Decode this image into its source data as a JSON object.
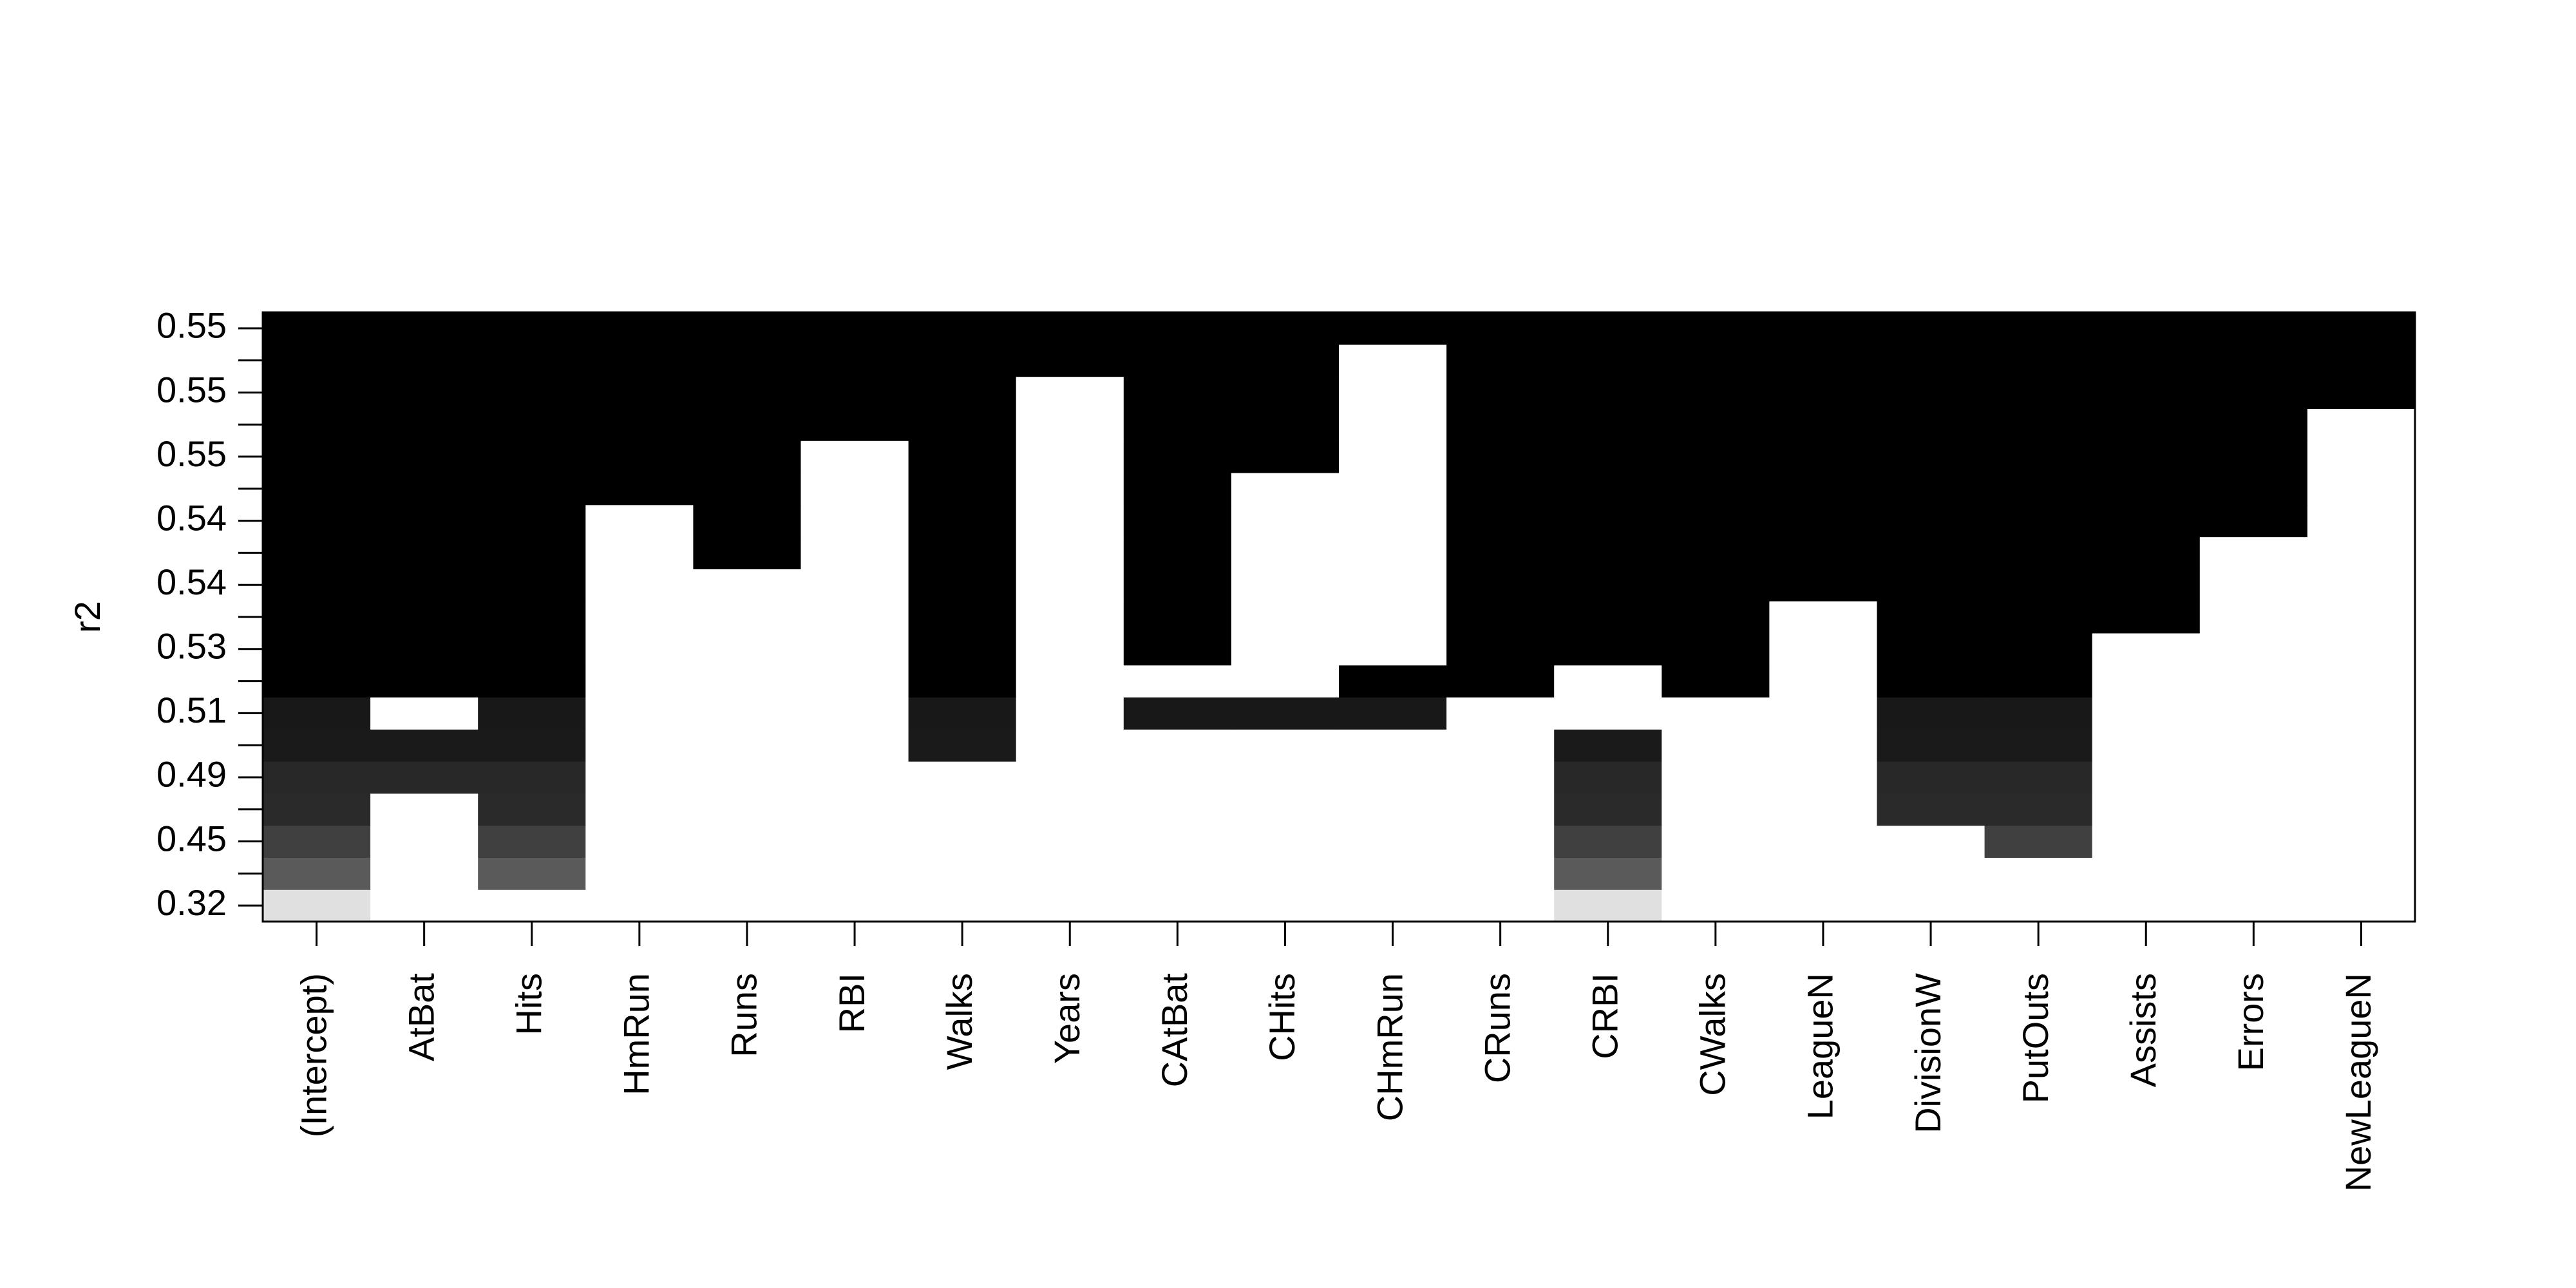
{
  "chart_data": {
    "type": "heatmap",
    "ylabel": "r2",
    "columns": [
      "(Intercept)",
      "AtBat",
      "Hits",
      "HmRun",
      "Runs",
      "RBI",
      "Walks",
      "Years",
      "CAtBat",
      "CHits",
      "CHmRun",
      "CRuns",
      "CRBI",
      "CWalks",
      "LeagueN",
      "DivisionW",
      "PutOuts",
      "Assists",
      "Errors",
      "NewLeagueN"
    ],
    "rows": [
      {
        "label": 0.32,
        "color": "#e0e0e0",
        "included": [
          1,
          0,
          0,
          0,
          0,
          0,
          0,
          0,
          0,
          0,
          0,
          0,
          1,
          0,
          0,
          0,
          0,
          0,
          0,
          0
        ]
      },
      {
        "label": null,
        "color": "#5a5a5a",
        "included": [
          1,
          0,
          1,
          0,
          0,
          0,
          0,
          0,
          0,
          0,
          0,
          0,
          1,
          0,
          0,
          0,
          0,
          0,
          0,
          0
        ]
      },
      {
        "label": 0.45,
        "color": "#404040",
        "included": [
          1,
          0,
          1,
          0,
          0,
          0,
          0,
          0,
          0,
          0,
          0,
          0,
          1,
          0,
          0,
          0,
          1,
          0,
          0,
          0
        ]
      },
      {
        "label": null,
        "color": "#2a2a2a",
        "included": [
          1,
          0,
          1,
          0,
          0,
          0,
          0,
          0,
          0,
          0,
          0,
          0,
          1,
          0,
          0,
          1,
          1,
          0,
          0,
          0
        ]
      },
      {
        "label": 0.49,
        "color": "#282828",
        "included": [
          1,
          1,
          1,
          0,
          0,
          0,
          0,
          0,
          0,
          0,
          0,
          0,
          1,
          0,
          0,
          1,
          1,
          0,
          0,
          0
        ]
      },
      {
        "label": null,
        "color": "#1a1a1a",
        "included": [
          1,
          1,
          1,
          0,
          0,
          0,
          1,
          0,
          0,
          0,
          0,
          0,
          1,
          0,
          0,
          1,
          1,
          0,
          0,
          0
        ]
      },
      {
        "label": 0.51,
        "color": "#181818",
        "included": [
          1,
          0,
          1,
          0,
          0,
          0,
          1,
          0,
          1,
          1,
          1,
          0,
          0,
          0,
          0,
          1,
          1,
          0,
          0,
          0
        ]
      },
      {
        "label": null,
        "color": "#000000",
        "included": [
          1,
          1,
          1,
          0,
          0,
          0,
          1,
          0,
          0,
          0,
          1,
          1,
          0,
          1,
          0,
          1,
          1,
          0,
          0,
          0
        ]
      },
      {
        "label": 0.53,
        "color": "#000000",
        "included": [
          1,
          1,
          1,
          0,
          0,
          0,
          1,
          0,
          1,
          0,
          0,
          1,
          1,
          1,
          0,
          1,
          1,
          0,
          0,
          0
        ]
      },
      {
        "label": null,
        "color": "#000000",
        "included": [
          1,
          1,
          1,
          0,
          0,
          0,
          1,
          0,
          1,
          0,
          0,
          1,
          1,
          1,
          0,
          1,
          1,
          1,
          0,
          0
        ]
      },
      {
        "label": 0.54,
        "color": "#000000",
        "included": [
          1,
          1,
          1,
          0,
          0,
          0,
          1,
          0,
          1,
          0,
          0,
          1,
          1,
          1,
          1,
          1,
          1,
          1,
          0,
          0
        ]
      },
      {
        "label": null,
        "color": "#000000",
        "included": [
          1,
          1,
          1,
          0,
          1,
          0,
          1,
          0,
          1,
          0,
          0,
          1,
          1,
          1,
          1,
          1,
          1,
          1,
          0,
          0
        ]
      },
      {
        "label": 0.54,
        "color": "#000000",
        "included": [
          1,
          1,
          1,
          0,
          1,
          0,
          1,
          0,
          1,
          0,
          0,
          1,
          1,
          1,
          1,
          1,
          1,
          1,
          1,
          0
        ]
      },
      {
        "label": null,
        "color": "#000000",
        "included": [
          1,
          1,
          1,
          1,
          1,
          0,
          1,
          0,
          1,
          0,
          0,
          1,
          1,
          1,
          1,
          1,
          1,
          1,
          1,
          0
        ]
      },
      {
        "label": 0.55,
        "color": "#000000",
        "included": [
          1,
          1,
          1,
          1,
          1,
          0,
          1,
          0,
          1,
          1,
          0,
          1,
          1,
          1,
          1,
          1,
          1,
          1,
          1,
          0
        ]
      },
      {
        "label": null,
        "color": "#000000",
        "included": [
          1,
          1,
          1,
          1,
          1,
          1,
          1,
          0,
          1,
          1,
          0,
          1,
          1,
          1,
          1,
          1,
          1,
          1,
          1,
          0
        ]
      },
      {
        "label": 0.55,
        "color": "#000000",
        "included": [
          1,
          1,
          1,
          1,
          1,
          1,
          1,
          0,
          1,
          1,
          0,
          1,
          1,
          1,
          1,
          1,
          1,
          1,
          1,
          1
        ]
      },
      {
        "label": null,
        "color": "#000000",
        "included": [
          1,
          1,
          1,
          1,
          1,
          1,
          1,
          1,
          1,
          1,
          0,
          1,
          1,
          1,
          1,
          1,
          1,
          1,
          1,
          1
        ]
      },
      {
        "label": 0.55,
        "color": "#000000",
        "included": [
          1,
          1,
          1,
          1,
          1,
          1,
          1,
          1,
          1,
          1,
          1,
          1,
          1,
          1,
          1,
          1,
          1,
          1,
          1,
          1
        ]
      }
    ]
  }
}
